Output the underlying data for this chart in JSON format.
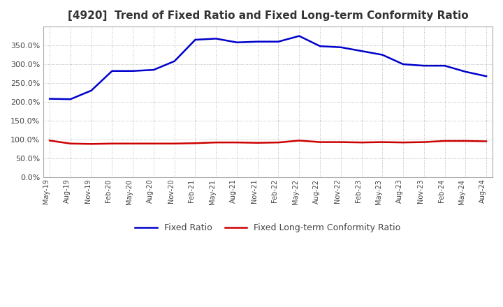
{
  "title": "[4920]  Trend of Fixed Ratio and Fixed Long-term Conformity Ratio",
  "x_labels": [
    "May-19",
    "Aug-19",
    "Nov-19",
    "Feb-20",
    "May-20",
    "Aug-20",
    "Nov-20",
    "Feb-21",
    "May-21",
    "Aug-21",
    "Nov-21",
    "Feb-22",
    "May-22",
    "Aug-22",
    "Nov-22",
    "Feb-23",
    "May-23",
    "Aug-23",
    "Nov-23",
    "Feb-24",
    "May-24",
    "Aug-24"
  ],
  "fixed_ratio": [
    208,
    207,
    230,
    282,
    282,
    285,
    308,
    365,
    368,
    358,
    360,
    360,
    375,
    348,
    345,
    335,
    325,
    300,
    296,
    296,
    280,
    268
  ],
  "fixed_lt_ratio": [
    97,
    89,
    88,
    89,
    89,
    89,
    89,
    90,
    92,
    92,
    91,
    92,
    97,
    93,
    93,
    92,
    93,
    92,
    93,
    96,
    96,
    95
  ],
  "fixed_ratio_color": "#0000CC",
  "fixed_lt_ratio_color": "#CC0000",
  "ylim": [
    0,
    400
  ],
  "yticks": [
    0,
    50,
    100,
    150,
    200,
    250,
    300,
    350
  ],
  "grid_color": "#AAAAAA",
  "bg_color": "#FFFFFF",
  "plot_bg_color": "#FFFFFF",
  "legend_labels": [
    "Fixed Ratio",
    "Fixed Long-term Conformity Ratio"
  ]
}
